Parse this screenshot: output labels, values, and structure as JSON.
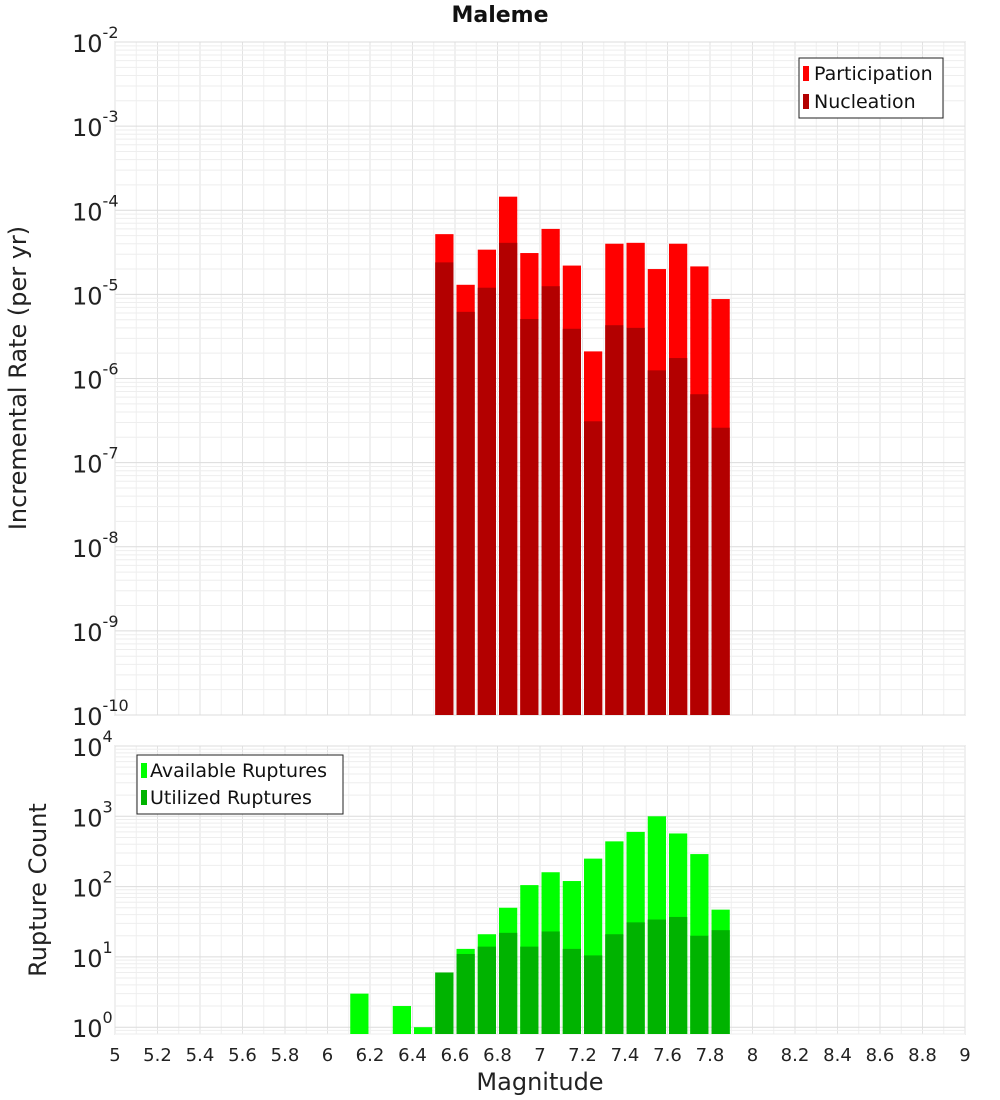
{
  "chart_data": [
    {
      "type": "bar",
      "title": "Maleme",
      "xlabel": "",
      "ylabel": "Incremental Rate (per yr)",
      "yscale": "log",
      "ylim": [
        1e-10,
        0.01
      ],
      "xlim": [
        5,
        9
      ],
      "bar_width": 0.1,
      "y_ticks": [
        {
          "base": "10",
          "exp": "-10"
        },
        {
          "base": "10",
          "exp": "-9"
        },
        {
          "base": "10",
          "exp": "-8"
        },
        {
          "base": "10",
          "exp": "-7"
        },
        {
          "base": "10",
          "exp": "-6"
        },
        {
          "base": "10",
          "exp": "-5"
        },
        {
          "base": "10",
          "exp": "-4"
        },
        {
          "base": "10",
          "exp": "-3"
        },
        {
          "base": "10",
          "exp": "-2"
        }
      ],
      "legend_position": "top-right",
      "grid": true,
      "x": [
        6.55,
        6.65,
        6.75,
        6.85,
        6.95,
        7.05,
        7.15,
        7.25,
        7.35,
        7.45,
        7.55,
        7.65,
        7.75,
        7.85
      ],
      "series": [
        {
          "name": "Participation",
          "color": "#ff0000",
          "values": [
            5.2e-05,
            1.3e-05,
            3.4e-05,
            0.000145,
            3.1e-05,
            6e-05,
            2.2e-05,
            2.1e-06,
            4e-05,
            4.1e-05,
            2e-05,
            4e-05,
            2.15e-05,
            8.8e-06
          ]
        },
        {
          "name": "Nucleation",
          "color": "#b30000",
          "values": [
            2.4e-05,
            6.2e-06,
            1.2e-05,
            4.1e-05,
            5.1e-06,
            1.25e-05,
            3.9e-06,
            3.1e-07,
            4.3e-06,
            4e-06,
            1.25e-06,
            1.75e-06,
            6.5e-07,
            2.6e-07
          ]
        }
      ]
    },
    {
      "type": "bar",
      "title": "",
      "xlabel": "Magnitude",
      "ylabel": "Rupture Count",
      "yscale": "log",
      "ylim": [
        0.8,
        10000
      ],
      "xlim": [
        5,
        9
      ],
      "bar_width": 0.1,
      "x_ticks": [
        "5",
        "5.2",
        "5.4",
        "5.6",
        "5.8",
        "6",
        "6.2",
        "6.4",
        "6.6",
        "6.8",
        "7",
        "7.2",
        "7.4",
        "7.6",
        "7.8",
        "8",
        "8.2",
        "8.4",
        "8.6",
        "8.8",
        "9"
      ],
      "y_ticks": [
        {
          "base": "10",
          "exp": "0"
        },
        {
          "base": "10",
          "exp": "1"
        },
        {
          "base": "10",
          "exp": "2"
        },
        {
          "base": "10",
          "exp": "3"
        },
        {
          "base": "10",
          "exp": "4"
        }
      ],
      "legend_position": "top-left",
      "grid": true,
      "x": [
        6.15,
        6.35,
        6.45,
        6.55,
        6.65,
        6.75,
        6.85,
        6.95,
        7.05,
        7.15,
        7.25,
        7.35,
        7.45,
        7.55,
        7.65,
        7.75,
        7.85
      ],
      "series": [
        {
          "name": "Available Ruptures",
          "color": "#00ff00",
          "values": [
            3,
            2,
            1,
            6,
            13,
            21,
            50,
            105,
            160,
            120,
            250,
            440,
            600,
            1000,
            570,
            290,
            47
          ]
        },
        {
          "name": "Utilized Ruptures",
          "color": "#00b300",
          "values": [
            0,
            0,
            0,
            6,
            11,
            14,
            22,
            14,
            23,
            13,
            10.5,
            21,
            31,
            34,
            37,
            20,
            24
          ]
        }
      ]
    }
  ]
}
